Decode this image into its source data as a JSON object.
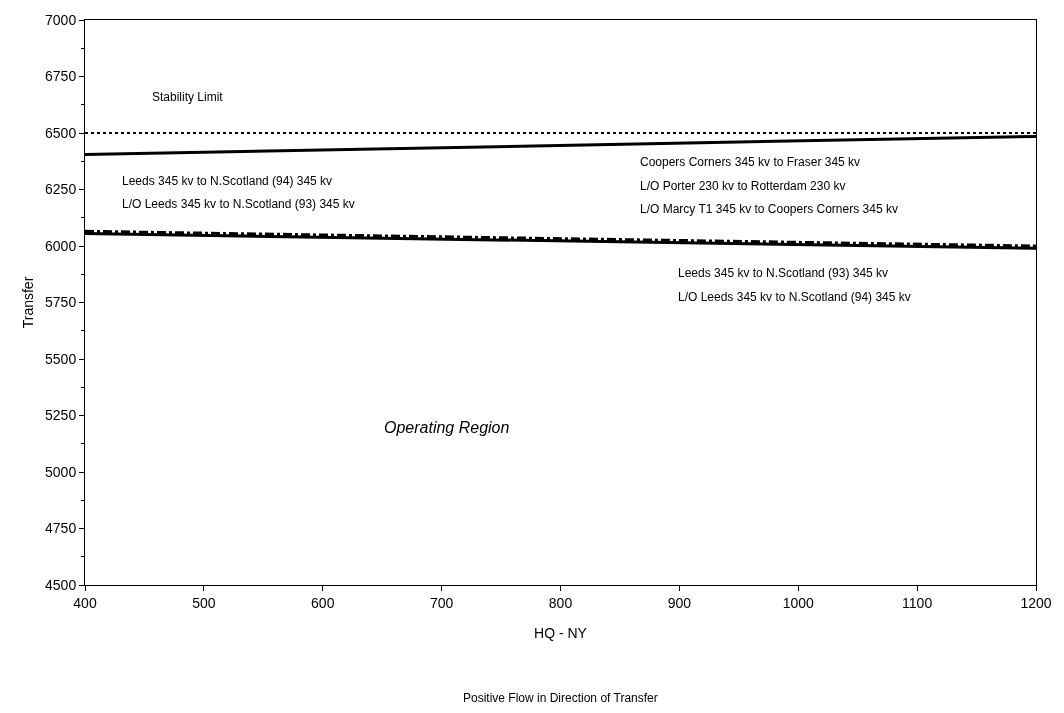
{
  "chart_data": {
    "type": "line",
    "xlabel": "HQ - NY",
    "ylabel": "Transfer",
    "x": [
      400,
      1200
    ],
    "series": [
      {
        "color": "#000000",
        "values": [
          6405,
          6485
        ],
        "line_style": "solid"
      },
      {
        "color": "#000000",
        "values": [
          6055,
          5990
        ],
        "line_style": "solid"
      },
      {
        "color": "#000000",
        "values": [
          6065,
          6000
        ],
        "line_style": "dashed"
      }
    ],
    "ref_lines": [
      {
        "axis": "y",
        "value": 6500,
        "color": "#000000",
        "line_style": "dotted"
      }
    ],
    "xlim": [
      400,
      1200
    ],
    "xticks": [
      400,
      500,
      600,
      700,
      800,
      900,
      1000,
      1100,
      1200
    ],
    "ylim": [
      4500,
      7000
    ],
    "yticks": [
      4500,
      4750,
      5000,
      5250,
      5500,
      5750,
      6000,
      6250,
      6500,
      6750,
      7000
    ],
    "marker": "none",
    "annotations": [
      "Stability Limit",
      "Leeds 345 kv to N.Scotland (94) 345 kv",
      "L/O Leeds 345 kv to N.Scotland (93) 345 kv",
      "Coopers Corners 345 kv to Fraser 345 kv",
      "L/O Porter 230 kv to Rotterdam 230 kv",
      "L/O Marcy T1 345 kv to Coopers Corners 345 kv",
      "Leeds 345 kv to N.Scotland (93) 345 kv",
      "L/O Leeds 345 kv to N.Scotland (94) 345 kv",
      "Operating Region",
      "Positive Flow in Direction of Transfer"
    ]
  }
}
